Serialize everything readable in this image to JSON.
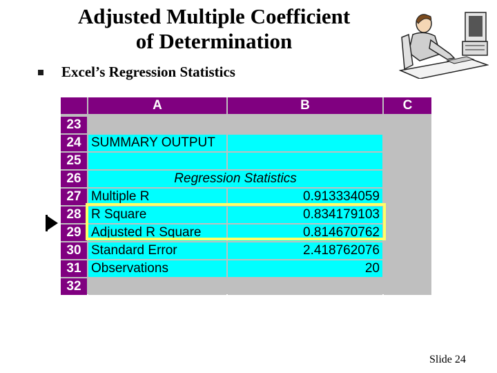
{
  "slide": {
    "title_line1": "Adjusted Multiple Coefficient",
    "title_line2": "of Determination",
    "bullet": "Excel’s Regression Statistics",
    "footer": "Slide 24"
  },
  "sheet": {
    "columns": [
      "A",
      "B",
      "C"
    ],
    "rows": [
      {
        "num": "23",
        "label": "",
        "value": ""
      },
      {
        "num": "24",
        "label": "SUMMARY OUTPUT",
        "value": ""
      },
      {
        "num": "25",
        "label": "",
        "value": ""
      },
      {
        "num": "26",
        "label": "Regression Statistics",
        "value": ""
      },
      {
        "num": "27",
        "label": "Multiple R",
        "value": "0.913334059"
      },
      {
        "num": "28",
        "label": "R Square",
        "value": "0.834179103"
      },
      {
        "num": "29",
        "label": "Adjusted R Square",
        "value": "0.814670762"
      },
      {
        "num": "30",
        "label": "Standard Error",
        "value": "2.418762076"
      },
      {
        "num": "31",
        "label": "Observations",
        "value": "20"
      },
      {
        "num": "32",
        "label": "",
        "value": ""
      }
    ]
  },
  "colors": {
    "header_bg": "#800080",
    "cell_bg": "#00ffff",
    "highlight": "#ffff66",
    "grid": "#bfbfbf"
  },
  "icons": {
    "clipart": "person-at-computer-icon",
    "pointer": "pointer-arrow-icon",
    "bullet": "square-bullet-icon"
  }
}
